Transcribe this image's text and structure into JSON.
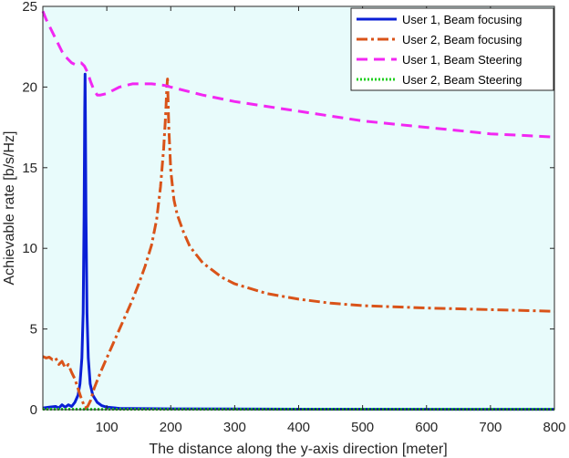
{
  "chart_data": {
    "type": "line",
    "title": "",
    "xlabel": "The distance along the y-axis direction [meter]",
    "ylabel": "Achievable rate [b/s/Hz]",
    "xlim": [
      0,
      800
    ],
    "ylim": [
      0,
      25
    ],
    "xticks": [
      100,
      200,
      300,
      400,
      500,
      600,
      700,
      800
    ],
    "yticks": [
      0,
      5,
      10,
      15,
      20,
      25
    ],
    "grid": false,
    "background": "#e8fbfb",
    "legend_position": "top-right",
    "series": [
      {
        "name": "User 1, Beam focusing",
        "color": "#0a1fd6",
        "dash": "solid",
        "points": [
          [
            0,
            0.1
          ],
          [
            10,
            0.15
          ],
          [
            20,
            0.2
          ],
          [
            25,
            0.1
          ],
          [
            30,
            0.3
          ],
          [
            35,
            0.15
          ],
          [
            40,
            0.3
          ],
          [
            45,
            0.2
          ],
          [
            50,
            0.45
          ],
          [
            55,
            0.9
          ],
          [
            58,
            1.6
          ],
          [
            61,
            3.2
          ],
          [
            63,
            6.0
          ],
          [
            64.5,
            12.0
          ],
          [
            65.5,
            18.5
          ],
          [
            66,
            20.8
          ],
          [
            66.5,
            18.5
          ],
          [
            67.5,
            12.0
          ],
          [
            69,
            6.0
          ],
          [
            71,
            3.2
          ],
          [
            74,
            1.6
          ],
          [
            78,
            0.9
          ],
          [
            85,
            0.45
          ],
          [
            92,
            0.25
          ],
          [
            100,
            0.15
          ],
          [
            120,
            0.08
          ],
          [
            200,
            0.05
          ],
          [
            400,
            0.03
          ],
          [
            800,
            0.02
          ]
        ]
      },
      {
        "name": "User 2, Beam focusing",
        "color": "#d95319",
        "dash": "dashdot",
        "points": [
          [
            0,
            3.3
          ],
          [
            5,
            3.2
          ],
          [
            10,
            3.25
          ],
          [
            15,
            3.1
          ],
          [
            20,
            3.2
          ],
          [
            25,
            2.8
          ],
          [
            30,
            3.0
          ],
          [
            35,
            2.6
          ],
          [
            40,
            2.8
          ],
          [
            45,
            2.3
          ],
          [
            50,
            1.9
          ],
          [
            55,
            1.3
          ],
          [
            60,
            0.7
          ],
          [
            63,
            0.4
          ],
          [
            66,
            0.1
          ],
          [
            70,
            0.2
          ],
          [
            75,
            0.6
          ],
          [
            80,
            1.3
          ],
          [
            90,
            2.3
          ],
          [
            100,
            3.2
          ],
          [
            110,
            4.1
          ],
          [
            120,
            5.0
          ],
          [
            130,
            5.9
          ],
          [
            140,
            6.8
          ],
          [
            150,
            7.8
          ],
          [
            160,
            8.9
          ],
          [
            170,
            10.2
          ],
          [
            178,
            11.8
          ],
          [
            184,
            13.8
          ],
          [
            189,
            16.2
          ],
          [
            192,
            18.2
          ],
          [
            194,
            20.0
          ],
          [
            195,
            20.5
          ],
          [
            197,
            17.5
          ],
          [
            200,
            14.8
          ],
          [
            205,
            13.0
          ],
          [
            210,
            12.1
          ],
          [
            220,
            11.0
          ],
          [
            230,
            10.1
          ],
          [
            250,
            9.1
          ],
          [
            280,
            8.2
          ],
          [
            300,
            7.8
          ],
          [
            350,
            7.2
          ],
          [
            400,
            6.85
          ],
          [
            450,
            6.6
          ],
          [
            500,
            6.45
          ],
          [
            600,
            6.3
          ],
          [
            700,
            6.2
          ],
          [
            800,
            6.1
          ]
        ]
      },
      {
        "name": "User 1, Beam Steering",
        "color": "#f227f2",
        "dash": "dashed",
        "points": [
          [
            0,
            24.7
          ],
          [
            5,
            24.2
          ],
          [
            10,
            23.8
          ],
          [
            15,
            23.4
          ],
          [
            20,
            23.0
          ],
          [
            25,
            22.6
          ],
          [
            30,
            22.2
          ],
          [
            35,
            21.9
          ],
          [
            40,
            21.7
          ],
          [
            45,
            21.5
          ],
          [
            50,
            21.4
          ],
          [
            55,
            21.5
          ],
          [
            60,
            21.5
          ],
          [
            65,
            21.3
          ],
          [
            70,
            20.9
          ],
          [
            75,
            20.3
          ],
          [
            80,
            19.8
          ],
          [
            85,
            19.5
          ],
          [
            90,
            19.5
          ],
          [
            100,
            19.6
          ],
          [
            110,
            19.8
          ],
          [
            120,
            20.0
          ],
          [
            130,
            20.1
          ],
          [
            140,
            20.2
          ],
          [
            150,
            20.2
          ],
          [
            160,
            20.2
          ],
          [
            170,
            20.2
          ],
          [
            180,
            20.15
          ],
          [
            190,
            20.1
          ],
          [
            200,
            20.0
          ],
          [
            250,
            19.5
          ],
          [
            300,
            19.1
          ],
          [
            350,
            18.8
          ],
          [
            400,
            18.5
          ],
          [
            450,
            18.2
          ],
          [
            500,
            17.9
          ],
          [
            550,
            17.7
          ],
          [
            600,
            17.5
          ],
          [
            650,
            17.3
          ],
          [
            700,
            17.1
          ],
          [
            750,
            17.0
          ],
          [
            800,
            16.9
          ]
        ]
      },
      {
        "name": "User 2, Beam Steering",
        "color": "#1fcf1f",
        "dash": "dotted",
        "points": [
          [
            0,
            0.03
          ],
          [
            100,
            0.02
          ],
          [
            200,
            0.02
          ],
          [
            400,
            0.02
          ],
          [
            600,
            0.02
          ],
          [
            800,
            0.02
          ]
        ]
      }
    ]
  }
}
